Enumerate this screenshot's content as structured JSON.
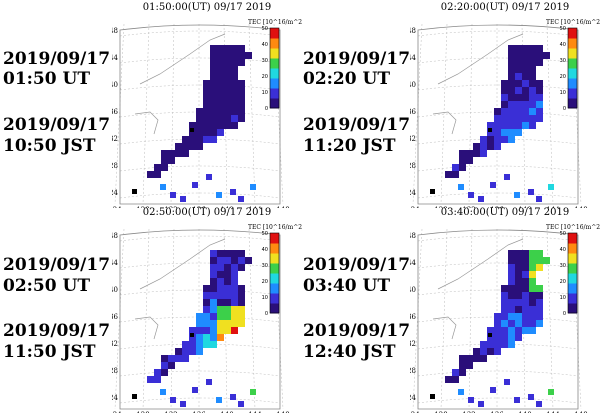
{
  "panels": [
    {
      "title": "01:50:00(UT)  09/17 2019",
      "label_ut_date": "2019/09/17",
      "label_ut_time": "01:50 UT",
      "label_jst_date": "2019/09/17",
      "label_jst_time": "10:50 JST",
      "colorbar_title": "TEC [10^16/m^2]",
      "colorbar_ticks": [
        "50",
        "40",
        "30",
        "20",
        "10",
        "0"
      ],
      "lat_labels": [
        "48",
        "44",
        "40",
        "36",
        "32",
        "28",
        "24"
      ],
      "lon_labels": [
        "124",
        "128",
        "132",
        "136",
        "140",
        "144",
        "148"
      ],
      "activity": 0.25
    },
    {
      "title": "02:20:00(UT)  09/17 2019",
      "label_ut_date": "2019/09/17",
      "label_ut_time": "02:20 UT",
      "label_jst_date": "2019/09/17",
      "label_jst_time": "11:20 JST",
      "colorbar_title": "TEC [10^16/m^2]",
      "colorbar_ticks": [
        "50",
        "40",
        "30",
        "20",
        "10",
        "0"
      ],
      "lat_labels": [
        "48",
        "44",
        "40",
        "36",
        "32",
        "28",
        "24"
      ],
      "lon_labels": [
        "124",
        "128",
        "132",
        "136",
        "140",
        "144",
        "148"
      ],
      "activity": 0.55
    },
    {
      "title": "02:50:00(UT)  09/17 2019",
      "label_ut_date": "2019/09/17",
      "label_ut_time": "02:50 UT",
      "label_jst_date": "2019/09/17",
      "label_jst_time": "11:50 JST",
      "colorbar_title": "TEC [10^16/m^2]",
      "colorbar_ticks": [
        "50",
        "40",
        "30",
        "20",
        "10",
        "0"
      ],
      "lat_labels": [
        "48",
        "44",
        "40",
        "36",
        "32",
        "28",
        "24"
      ],
      "lon_labels": [
        "124",
        "128",
        "132",
        "136",
        "140",
        "144",
        "148"
      ],
      "activity": 0.85
    },
    {
      "title": "03:40:00(UT)  09/17 2019",
      "label_ut_date": "2019/09/17",
      "label_ut_time": "03:40 UT",
      "label_jst_date": "2019/09/17",
      "label_jst_time": "12:40 JST",
      "colorbar_title": "TEC [10^16/m^2]",
      "colorbar_ticks": [
        "50",
        "40",
        "30",
        "20",
        "10",
        "0"
      ],
      "lat_labels": [
        "48",
        "44",
        "40",
        "36",
        "32",
        "28",
        "24"
      ],
      "lon_labels": [
        "124",
        "128",
        "132",
        "136",
        "140",
        "144",
        "148"
      ],
      "activity": 0.6
    }
  ],
  "colors": {
    "background_land": "#4a2bb0",
    "sea": "#ffffff",
    "scale": [
      "#2a0f7a",
      "#3a2fd6",
      "#1f8cff",
      "#20d8e0",
      "#3cd04a",
      "#f0e020",
      "#ff8a10",
      "#e01010"
    ]
  }
}
